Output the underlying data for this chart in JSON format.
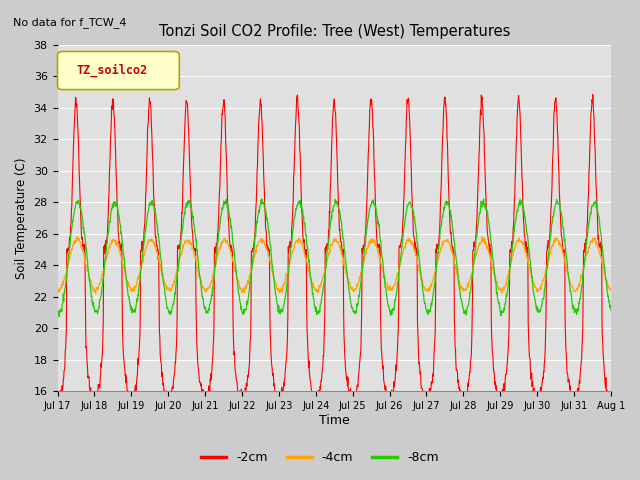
{
  "title": "Tonzi Soil CO2 Profile: Tree (West) Temperatures",
  "no_data_text": "No data for f_TCW_4",
  "ylabel": "Soil Temperature (C)",
  "xlabel": "Time",
  "legend_label": "TZ_soilco2",
  "legend_entries": [
    "-2cm",
    "-4cm",
    "-8cm"
  ],
  "line_colors": [
    "#ff0000",
    "#ffa500",
    "#22cc00"
  ],
  "ylim": [
    16,
    38
  ],
  "yticks": [
    16,
    18,
    20,
    22,
    24,
    26,
    28,
    30,
    32,
    34,
    36,
    38
  ],
  "fig_facecolor": "#cccccc",
  "ax_facecolor": "#e0e0e0",
  "grid_color": "#ffffff",
  "n_days": 15,
  "ppd": 96,
  "amp_2cm": 9.5,
  "amp_4cm": 1.6,
  "amp_8cm": 3.5,
  "mean_2cm": 25.0,
  "mean_4cm": 24.0,
  "mean_8cm": 24.5,
  "spike_sharpness": 3.0,
  "tick_labels": [
    "Jul 17",
    "Jul 18",
    "Jul 19",
    "Jul 20",
    "Jul 21",
    "Jul 22",
    "Jul 23",
    "Jul 24",
    "Jul 25",
    "Jul 26",
    "Jul 27",
    "Jul 28",
    "Jul 29",
    "Jul 30",
    "Jul 31",
    "Aug 1"
  ]
}
